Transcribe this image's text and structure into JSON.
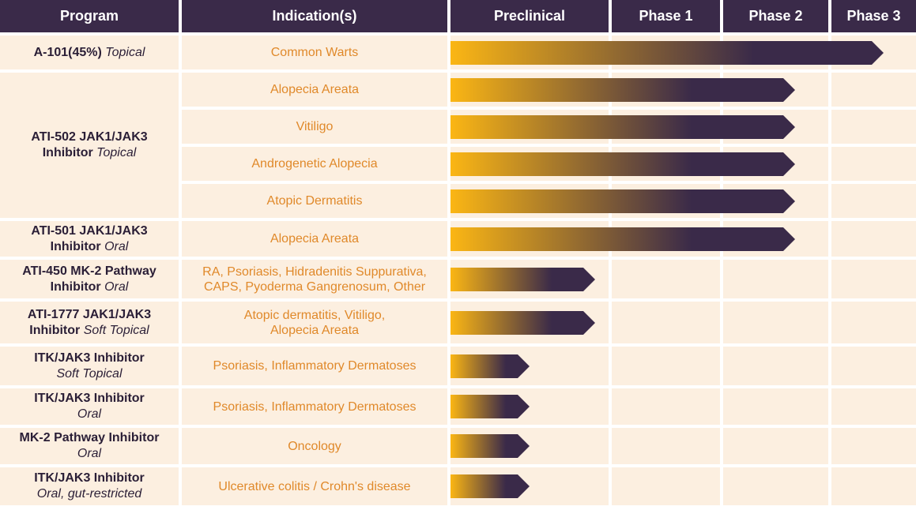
{
  "header": {
    "program": "Program",
    "indications": "Indication(s)",
    "phases": [
      "Preclinical",
      "Phase 1",
      "Phase 2",
      "Phase 3"
    ]
  },
  "colors": {
    "header_bg": "#3a2a49",
    "cell_bg": "#fcefe0",
    "bar_start": "#fbb614",
    "bar_end": "#3a2a49",
    "indication_text": "#e0892a",
    "program_text": "#2a1e36"
  },
  "programs": [
    {
      "name": "A-101(45%)",
      "mod": "Topical",
      "layout": "inline",
      "indications": [
        {
          "lines": [
            "Common Warts"
          ],
          "phase_reached": "Phase 3",
          "progress": 0.93
        }
      ]
    },
    {
      "name": "ATI-502 JAK1/JAK3",
      "name2": "Inhibitor",
      "mod": "Topical",
      "layout": "stacked",
      "indications": [
        {
          "lines": [
            "Alopecia Areata"
          ],
          "phase_reached": "Phase 2",
          "progress": 0.74
        },
        {
          "lines": [
            "Vitiligo"
          ],
          "phase_reached": "Phase 2",
          "progress": 0.74
        },
        {
          "lines": [
            "Androgenetic Alopecia"
          ],
          "phase_reached": "Phase 2",
          "progress": 0.74
        },
        {
          "lines": [
            "Atopic Dermatitis"
          ],
          "phase_reached": "Phase 2",
          "progress": 0.74
        }
      ]
    },
    {
      "name": "ATI-501 JAK1/JAK3",
      "name2": "Inhibitor",
      "mod": "Oral",
      "layout": "stacked",
      "indications": [
        {
          "lines": [
            "Alopecia Areata"
          ],
          "phase_reached": "Phase 2",
          "progress": 0.74
        }
      ]
    },
    {
      "name": "ATI-450 MK-2 Pathway",
      "name2": "Inhibitor",
      "mod": "Oral",
      "layout": "stacked",
      "indications": [
        {
          "lines": [
            "RA, Psoriasis, Hidradenitis Suppurativa,",
            "CAPS, Pyoderma Gangrenosum, Other"
          ],
          "phase_reached": "Preclinical",
          "progress": 0.31
        }
      ]
    },
    {
      "name": "ATI-1777 JAK1/JAK3",
      "name2": "Inhibitor",
      "mod": "Soft Topical",
      "layout": "stacked",
      "indications": [
        {
          "lines": [
            "Atopic dermatitis, Vitiligo,",
            "Alopecia Areata"
          ],
          "phase_reached": "Preclinical",
          "progress": 0.31
        }
      ]
    },
    {
      "name": "ITK/JAK3 Inhibitor",
      "mod": "Soft Topical",
      "layout": "mod-line",
      "indications": [
        {
          "lines": [
            "Psoriasis, Inflammatory Dermatoses"
          ],
          "phase_reached": "Preclinical",
          "progress": 0.17
        }
      ]
    },
    {
      "name": "ITK/JAK3 Inhibitor",
      "mod": "Oral",
      "layout": "mod-line",
      "indications": [
        {
          "lines": [
            "Psoriasis, Inflammatory Dermatoses"
          ],
          "phase_reached": "Preclinical",
          "progress": 0.17
        }
      ]
    },
    {
      "name": "MK-2 Pathway Inhibitor",
      "mod": "Oral",
      "layout": "mod-line",
      "indications": [
        {
          "lines": [
            "Oncology"
          ],
          "phase_reached": "Preclinical",
          "progress": 0.17
        }
      ]
    },
    {
      "name": "ITK/JAK3 Inhibitor",
      "mod": "Oral, gut-restricted",
      "layout": "mod-line",
      "indications": [
        {
          "lines": [
            "Ulcerative colitis / Crohn's disease"
          ],
          "phase_reached": "Preclinical",
          "progress": 0.17
        }
      ]
    }
  ]
}
